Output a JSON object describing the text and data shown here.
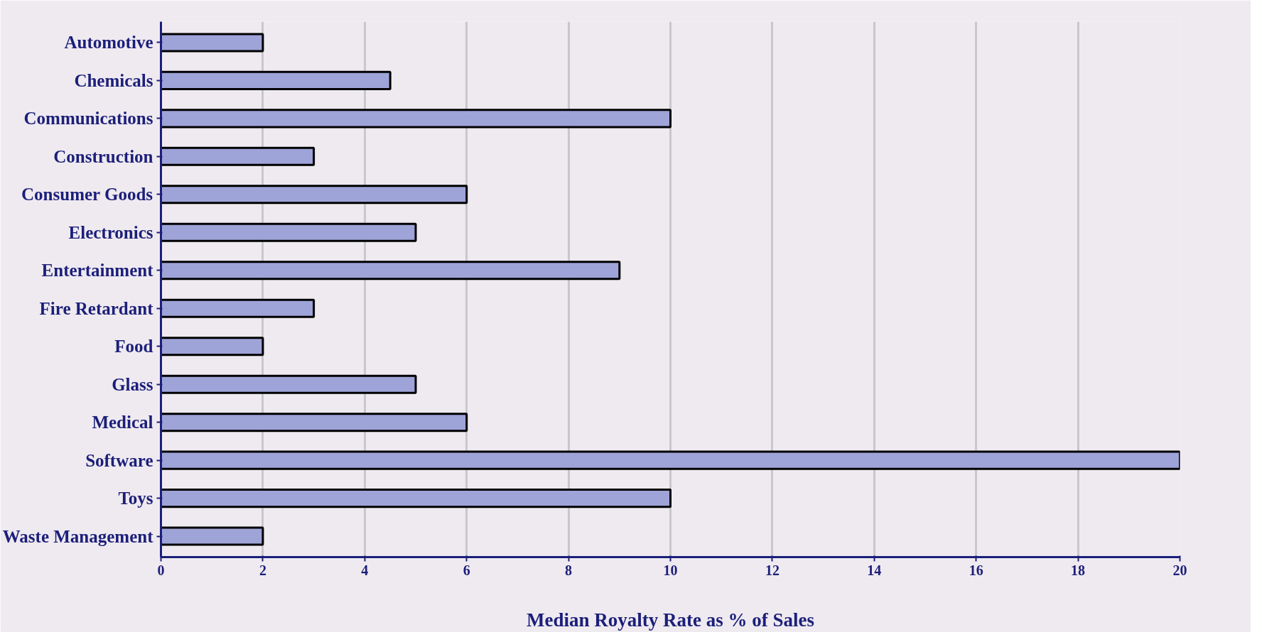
{
  "chart_data": {
    "type": "bar",
    "orientation": "horizontal",
    "xlabel": "Median Royalty Rate as % of Sales",
    "categories": [
      "Automotive",
      "Chemicals",
      "Communications",
      "Construction",
      "Consumer Goods",
      "Electronics",
      "Entertainment",
      "Fire Retardant",
      "Food",
      "Glass",
      "Medical",
      "Software",
      "Toys",
      "Waste Management"
    ],
    "values": [
      2,
      4.5,
      10,
      3,
      6,
      5,
      9,
      3,
      2,
      5,
      6,
      20,
      10,
      2
    ],
    "color": "#9ea3d8",
    "xlim": [
      0,
      20
    ],
    "xticks": [
      0,
      2,
      4,
      6,
      8,
      10,
      12,
      14,
      16,
      18,
      20
    ],
    "grid": "x"
  }
}
